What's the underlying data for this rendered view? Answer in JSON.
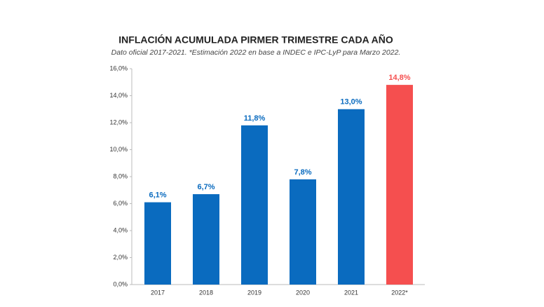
{
  "chart_data": {
    "type": "bar",
    "title": "INFLACIÓN ACUMULADA PIRMER TRIMESTRE CADA AÑO",
    "subtitle": "Dato oficial 2017-2021. *Estimación 2022 en base a INDEC e IPC-LyP para Marzo 2022.",
    "categories": [
      "2017",
      "2018",
      "2019",
      "2020",
      "2021",
      "2022*"
    ],
    "values": [
      6.1,
      6.7,
      11.8,
      7.8,
      13.0,
      14.8
    ],
    "value_labels": [
      "6,1%",
      "6,7%",
      "11,8%",
      "7,8%",
      "13,0%",
      "14,8%"
    ],
    "colors": [
      "#0a6bbf",
      "#0a6bbf",
      "#0a6bbf",
      "#0a6bbf",
      "#0a6bbf",
      "#f54f4f"
    ],
    "ylim": [
      0,
      16
    ],
    "yticks": [
      {
        "value": 0,
        "label": "0,0%"
      },
      {
        "value": 2,
        "label": "2,0%"
      },
      {
        "value": 4,
        "label": "4,0%"
      },
      {
        "value": 6,
        "label": "6,0%"
      },
      {
        "value": 8,
        "label": "8,0%"
      },
      {
        "value": 10,
        "label": "10,0%"
      },
      {
        "value": 12,
        "label": "12,0%"
      },
      {
        "value": 14,
        "label": "14,0%"
      },
      {
        "value": 16,
        "label": "16,0%"
      }
    ]
  }
}
